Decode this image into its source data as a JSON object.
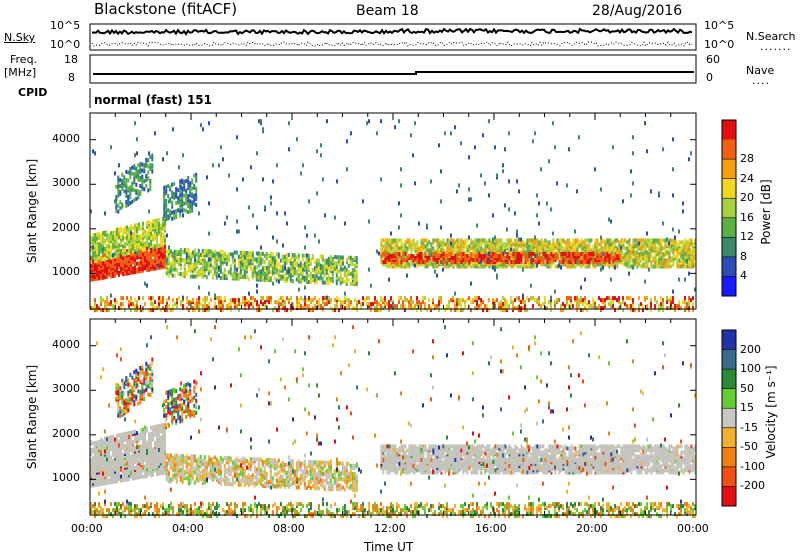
{
  "header": {
    "title": "Blackstone (fitACF)",
    "beam": "Beam 18",
    "date": "28/Aug/2016"
  },
  "top_panels": {
    "nsky_label": "N.Sky",
    "nsky_ticks": [
      "10^5",
      "10^0"
    ],
    "nsearch_label": "N.Search",
    "nsearch_ticks": [
      "10^5",
      "10^0"
    ],
    "freq_label_1": "Freq.",
    "freq_label_2": "[MHz]",
    "freq_ticks": [
      "18",
      "8"
    ],
    "nave_label": "Nave",
    "nave_ticks": [
      "60",
      "0"
    ],
    "cpid_label": "CPID",
    "cpid_value": "normal (fast) 151"
  },
  "colors": {
    "power_scale": [
      "#1a1aff",
      "#2c4fb5",
      "#3a8a6a",
      "#5bb046",
      "#a8d040",
      "#f0d820",
      "#f5a010",
      "#f06010",
      "#e01010"
    ],
    "velocity_scale": [
      "#2233aa",
      "#3a6a8a",
      "#2a8a3a",
      "#66cc33",
      "#c8c8c0",
      "#f0b030",
      "#f08010",
      "#f05010",
      "#e01010"
    ],
    "gs_gray": "#c4c4bc"
  },
  "chart_data": [
    {
      "type": "heatmap",
      "name": "power",
      "ylabel": "Slant Range [km]",
      "yticks": [
        "1000",
        "2000",
        "3000",
        "4000"
      ],
      "ylim": [
        200,
        4600
      ],
      "xlim": [
        0,
        24
      ],
      "colorbar_label": "Power [dB]",
      "colorbar_ticks": [
        "4",
        "8",
        "12",
        "16",
        "20",
        "24",
        "28"
      ],
      "colorbar_range": [
        0,
        30
      ]
    },
    {
      "type": "heatmap",
      "name": "velocity",
      "ylabel": "Slant Range [km]",
      "yticks": [
        "1000",
        "2000",
        "3000",
        "4000"
      ],
      "ylim": [
        200,
        4600
      ],
      "xlim": [
        0,
        24
      ],
      "colorbar_label": "Velocity [m s⁻¹]",
      "colorbar_ticks": [
        "200",
        "100",
        "50",
        "15",
        "-15",
        "-50",
        "-100",
        "-200"
      ],
      "xticks": [
        "00:00",
        "04:00",
        "08:00",
        "12:00",
        "16:00",
        "20:00",
        "00:00"
      ],
      "xlabel": "Time UT"
    }
  ]
}
